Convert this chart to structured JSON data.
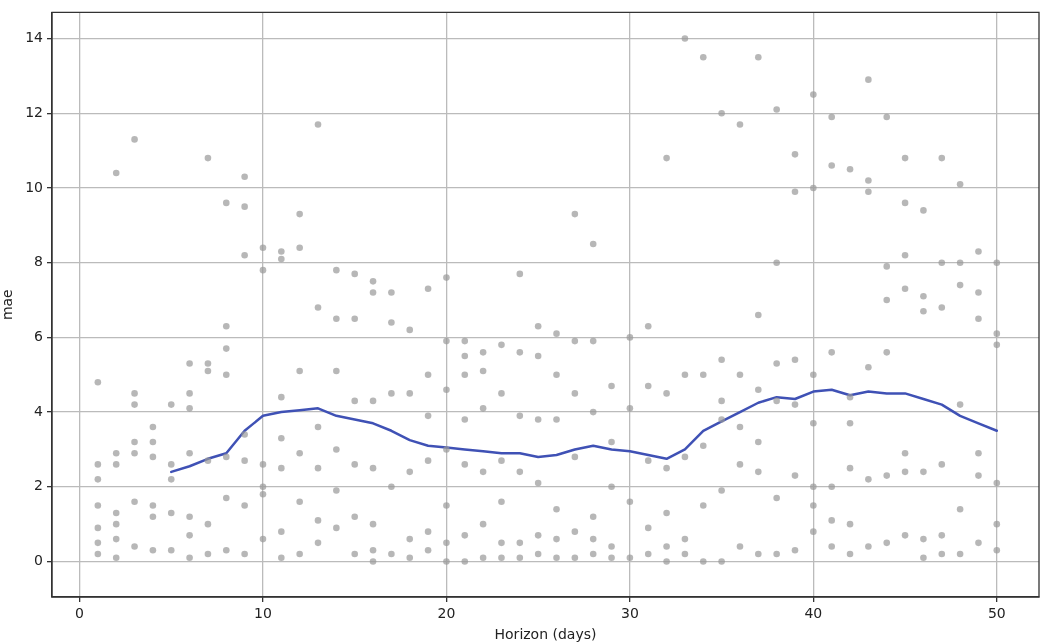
{
  "chart_data": {
    "type": "scatter",
    "xlabel": "Horizon (days)",
    "ylabel": "mae",
    "xlim": [
      -1.5,
      52.3
    ],
    "ylim": [
      -0.95,
      14.7
    ],
    "xticks": [
      0,
      10,
      20,
      30,
      40,
      50
    ],
    "yticks": [
      0,
      2,
      4,
      6,
      8,
      10,
      12,
      14
    ],
    "grid": true,
    "marker": "circle",
    "series": [
      {
        "color": "#999999",
        "x": [
          1,
          1,
          1,
          1,
          1,
          1,
          1,
          2,
          2,
          2,
          2,
          2,
          2,
          2,
          3,
          3,
          3,
          3,
          3,
          3,
          3,
          4,
          4,
          4,
          4,
          4,
          4,
          5,
          5,
          5,
          5,
          5,
          6,
          6,
          6,
          6,
          6,
          6,
          6,
          7,
          7,
          7,
          7,
          7,
          7,
          8,
          8,
          8,
          8,
          8,
          8,
          8,
          9,
          9,
          9,
          9,
          9,
          9,
          9,
          10,
          10,
          10,
          10,
          10,
          10,
          11,
          11,
          11,
          11,
          11,
          11,
          11,
          12,
          12,
          12,
          12,
          12,
          12,
          13,
          13,
          13,
          13,
          13,
          13,
          14,
          14,
          14,
          14,
          14,
          14,
          15,
          15,
          15,
          15,
          15,
          15,
          16,
          16,
          16,
          16,
          16,
          16,
          16,
          17,
          17,
          17,
          17,
          17,
          18,
          18,
          18,
          18,
          18,
          19,
          19,
          19,
          19,
          19,
          19,
          20,
          20,
          20,
          20,
          20,
          20,
          20,
          21,
          21,
          21,
          21,
          21,
          21,
          21,
          22,
          22,
          22,
          22,
          22,
          22,
          23,
          23,
          23,
          23,
          23,
          23,
          24,
          24,
          24,
          24,
          24,
          24,
          25,
          25,
          25,
          25,
          25,
          25,
          26,
          26,
          26,
          26,
          26,
          26,
          27,
          27,
          27,
          27,
          27,
          27,
          28,
          28,
          28,
          28,
          28,
          28,
          29,
          29,
          29,
          29,
          29,
          30,
          30,
          30,
          30,
          31,
          31,
          31,
          31,
          31,
          32,
          32,
          32,
          32,
          32,
          32,
          33,
          33,
          33,
          33,
          33,
          34,
          34,
          34,
          34,
          34,
          35,
          35,
          35,
          35,
          35,
          35,
          36,
          36,
          36,
          36,
          36,
          37,
          37,
          37,
          37,
          37,
          37,
          38,
          38,
          38,
          38,
          38,
          38,
          39,
          39,
          39,
          39,
          39,
          39,
          40,
          40,
          40,
          40,
          40,
          40,
          40,
          41,
          41,
          41,
          41,
          41,
          41,
          42,
          42,
          42,
          42,
          42,
          42,
          43,
          43,
          43,
          43,
          43,
          43,
          44,
          44,
          44,
          44,
          44,
          44,
          45,
          45,
          45,
          45,
          45,
          45,
          45,
          46,
          46,
          46,
          46,
          46,
          46,
          47,
          47,
          47,
          47,
          47,
          47,
          48,
          48,
          48,
          48,
          48,
          48,
          49,
          49,
          49,
          49,
          49,
          49,
          50,
          50,
          50,
          50,
          50,
          50
        ],
        "values": [
          4.8,
          2.6,
          2.2,
          1.5,
          0.9,
          0.5,
          0.2,
          10.4,
          2.9,
          2.6,
          1.3,
          1.0,
          0.6,
          0.1,
          11.3,
          4.5,
          4.2,
          3.2,
          2.9,
          1.6,
          0.4,
          3.6,
          3.2,
          2.8,
          1.5,
          1.2,
          0.3,
          4.2,
          2.6,
          2.2,
          1.3,
          0.3,
          5.3,
          4.5,
          4.1,
          2.9,
          1.2,
          0.7,
          0.1,
          10.8,
          5.3,
          5.1,
          2.7,
          1.0,
          0.2,
          9.6,
          6.3,
          5.7,
          5.0,
          2.8,
          1.7,
          0.3,
          10.3,
          9.5,
          8.2,
          3.4,
          2.7,
          1.5,
          0.2,
          8.4,
          7.8,
          2.6,
          2.0,
          1.8,
          0.6,
          8.3,
          8.1,
          4.4,
          3.3,
          2.5,
          0.8,
          0.1,
          9.3,
          8.4,
          5.1,
          2.9,
          1.6,
          0.2,
          11.7,
          6.8,
          3.6,
          2.5,
          1.1,
          0.5,
          7.8,
          6.5,
          5.1,
          3.0,
          1.9,
          0.9,
          7.7,
          6.5,
          4.3,
          2.6,
          1.2,
          0.2,
          7.5,
          7.2,
          4.3,
          2.5,
          1.0,
          0.3,
          0.0,
          7.2,
          6.4,
          4.5,
          2.0,
          0.2,
          6.2,
          4.5,
          2.4,
          0.6,
          0.1,
          7.3,
          5.0,
          3.9,
          2.7,
          0.8,
          0.3,
          7.6,
          5.9,
          4.6,
          3.0,
          1.5,
          0.5,
          0.0,
          5.9,
          5.5,
          5.0,
          3.8,
          2.6,
          0.7,
          0.0,
          5.6,
          5.1,
          4.1,
          2.4,
          1.0,
          0.1,
          5.8,
          4.5,
          2.7,
          1.6,
          0.5,
          0.1,
          7.7,
          5.6,
          3.9,
          2.4,
          0.5,
          0.1,
          6.3,
          5.5,
          3.8,
          2.1,
          0.7,
          0.2,
          6.1,
          5.0,
          3.8,
          1.4,
          0.6,
          0.1,
          9.3,
          5.9,
          4.5,
          2.8,
          0.8,
          0.1,
          8.5,
          5.9,
          4.0,
          1.2,
          0.6,
          0.2,
          4.7,
          3.2,
          2.0,
          0.4,
          0.1,
          6.0,
          4.1,
          1.6,
          0.1,
          6.3,
          4.7,
          2.7,
          0.9,
          0.2,
          10.8,
          4.5,
          2.5,
          1.3,
          0.4,
          0.0,
          14.0,
          5.0,
          2.8,
          0.6,
          0.2,
          13.5,
          5.0,
          3.1,
          1.5,
          0.0,
          12.0,
          5.4,
          4.3,
          3.8,
          1.9,
          0.0,
          11.7,
          5.0,
          3.6,
          2.6,
          0.4,
          13.5,
          6.6,
          4.6,
          3.2,
          2.4,
          0.2,
          12.1,
          8.0,
          5.3,
          4.3,
          1.7,
          0.2,
          10.9,
          9.9,
          5.4,
          4.2,
          2.3,
          0.3,
          12.5,
          10.0,
          5.0,
          3.7,
          2.0,
          1.5,
          0.8,
          11.9,
          10.6,
          5.6,
          2.0,
          1.1,
          0.4,
          10.5,
          4.4,
          3.7,
          2.5,
          1.0,
          0.2,
          12.9,
          10.2,
          9.9,
          5.2,
          2.2,
          0.4,
          11.9,
          7.9,
          7.0,
          5.6,
          2.3,
          0.5,
          10.8,
          9.6,
          8.2,
          7.3,
          2.9,
          2.4,
          0.7,
          9.4,
          7.1,
          6.7,
          2.4,
          0.6,
          0.1,
          10.8,
          8.0,
          6.8,
          2.6,
          0.7,
          0.2,
          10.1,
          8.0,
          7.4,
          4.2,
          1.4,
          0.2,
          8.3,
          7.2,
          6.5,
          2.9,
          2.3,
          0.5,
          8.0,
          6.1,
          5.8,
          2.1,
          1.0,
          0.3
        ]
      },
      {
        "type": "line",
        "color": "#3f51b5",
        "marker": "none",
        "x": [
          5,
          6,
          7,
          8,
          9,
          10,
          11,
          12,
          13,
          14,
          15,
          16,
          17,
          18,
          19,
          20,
          21,
          22,
          23,
          24,
          25,
          26,
          27,
          28,
          29,
          30,
          31,
          32,
          33,
          34,
          35,
          36,
          37,
          38,
          39,
          40,
          41,
          42,
          43,
          44,
          45,
          46,
          47,
          48,
          49,
          50
        ],
        "values": [
          2.4,
          2.55,
          2.75,
          2.9,
          3.5,
          3.9,
          4.0,
          4.05,
          4.1,
          3.9,
          3.8,
          3.7,
          3.5,
          3.25,
          3.1,
          3.05,
          3.0,
          2.95,
          2.9,
          2.9,
          2.8,
          2.85,
          3.0,
          3.1,
          3.0,
          2.95,
          2.85,
          2.75,
          3.0,
          3.5,
          3.75,
          4.0,
          4.25,
          4.4,
          4.35,
          4.55,
          4.6,
          4.45,
          4.55,
          4.5,
          4.5,
          4.35,
          4.2,
          3.9,
          3.7,
          3.5
        ]
      }
    ]
  }
}
